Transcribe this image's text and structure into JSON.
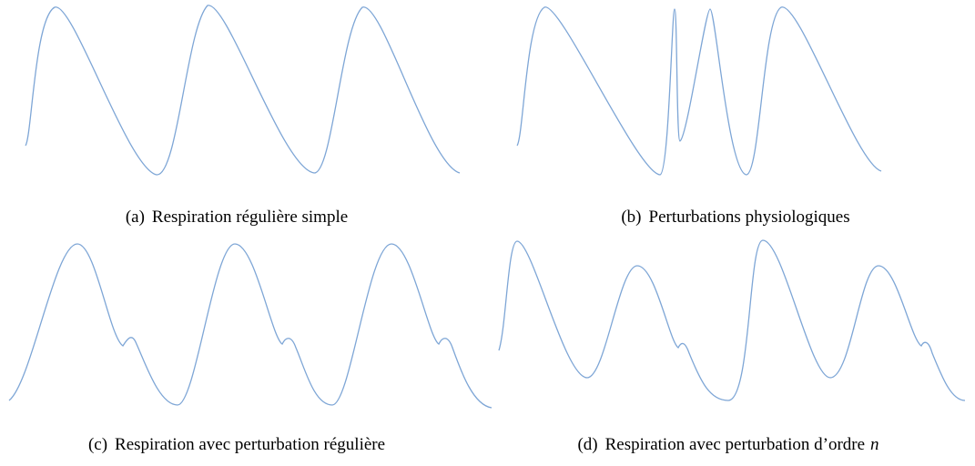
{
  "figure": {
    "panels": [
      {
        "label": "(a)",
        "caption": "Respiration régulière simple"
      },
      {
        "label": "(b)",
        "caption": "Perturbations physiologiques"
      },
      {
        "label": "(c)",
        "caption": "Respiration avec perturbation régulière"
      },
      {
        "label": "(d)",
        "caption": "Respiration avec perturbation d’ordre",
        "math": "n"
      }
    ]
  }
}
